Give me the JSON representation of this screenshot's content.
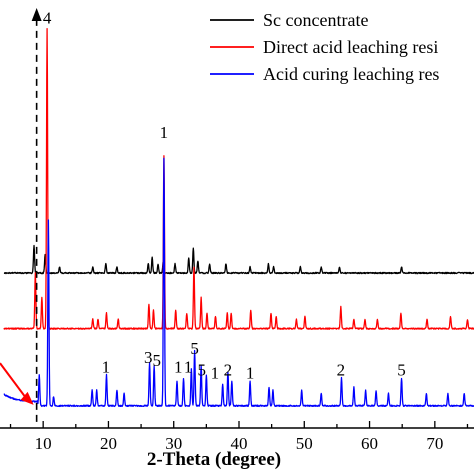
{
  "chart_data": {
    "type": "line",
    "title": "",
    "xlabel": "2-Theta (degree)",
    "ylabel": "",
    "xlim": [
      4,
      76
    ],
    "xticks": [
      10,
      20,
      30,
      40,
      50,
      60,
      70
    ],
    "xtick_labels": [
      "10",
      "20",
      "30",
      "40",
      "50",
      "60",
      "70"
    ],
    "legend_position": "top-right",
    "grid": false,
    "series": [
      {
        "name": "Sc concentrate",
        "color": "#000000",
        "baseline": 0.5,
        "peaks": [
          [
            8.6,
            0.09
          ],
          [
            10.3,
            0.06
          ],
          [
            12.5,
            0.02
          ],
          [
            17.6,
            0.02
          ],
          [
            19.6,
            0.03
          ],
          [
            21.3,
            0.02
          ],
          [
            26.1,
            0.03
          ],
          [
            26.7,
            0.05
          ],
          [
            27.6,
            0.03
          ],
          [
            28.4,
            0.04
          ],
          [
            30.2,
            0.03
          ],
          [
            32.3,
            0.05
          ],
          [
            33.0,
            0.08
          ],
          [
            33.7,
            0.04
          ],
          [
            35.5,
            0.03
          ],
          [
            38.0,
            0.03
          ],
          [
            41.7,
            0.02
          ],
          [
            44.5,
            0.03
          ],
          [
            45.3,
            0.02
          ],
          [
            49.4,
            0.02
          ],
          [
            52.6,
            0.02
          ],
          [
            55.4,
            0.02
          ],
          [
            64.9,
            0.02
          ]
        ]
      },
      {
        "name": "Direct acid leaching resi",
        "color": "#ff0000",
        "baseline": 0.32,
        "peaks": [
          [
            8.8,
            0.18
          ],
          [
            9.8,
            0.1
          ],
          [
            10.6,
            0.97
          ],
          [
            17.6,
            0.03
          ],
          [
            18.4,
            0.03
          ],
          [
            19.7,
            0.05
          ],
          [
            21.5,
            0.03
          ],
          [
            26.2,
            0.08
          ],
          [
            26.9,
            0.06
          ],
          [
            28.5,
            0.56
          ],
          [
            30.3,
            0.06
          ],
          [
            32.0,
            0.05
          ],
          [
            33.1,
            0.2
          ],
          [
            34.2,
            0.1
          ],
          [
            35.1,
            0.05
          ],
          [
            36.4,
            0.04
          ],
          [
            38.2,
            0.05
          ],
          [
            38.8,
            0.05
          ],
          [
            41.8,
            0.06
          ],
          [
            44.9,
            0.05
          ],
          [
            45.7,
            0.04
          ],
          [
            48.8,
            0.03
          ],
          [
            50.1,
            0.04
          ],
          [
            55.6,
            0.07
          ],
          [
            57.6,
            0.03
          ],
          [
            59.3,
            0.03
          ],
          [
            61.2,
            0.03
          ],
          [
            64.8,
            0.05
          ],
          [
            68.8,
            0.03
          ],
          [
            72.4,
            0.04
          ],
          [
            75.0,
            0.03
          ]
        ]
      },
      {
        "name": "Acid curing leaching res",
        "color": "#0000ff",
        "baseline": 0.07,
        "peaks": [
          [
            9.4,
            0.1
          ],
          [
            10.8,
            0.6
          ],
          [
            11.6,
            0.03
          ],
          [
            17.5,
            0.05
          ],
          [
            18.2,
            0.05
          ],
          [
            19.7,
            0.1
          ],
          [
            21.3,
            0.05
          ],
          [
            22.4,
            0.04
          ],
          [
            26.3,
            0.14
          ],
          [
            27.0,
            0.13
          ],
          [
            28.5,
            0.8
          ],
          [
            30.5,
            0.08
          ],
          [
            31.5,
            0.09
          ],
          [
            32.7,
            0.12
          ],
          [
            33.2,
            0.18
          ],
          [
            34.2,
            0.13
          ],
          [
            35.0,
            0.1
          ],
          [
            37.5,
            0.07
          ],
          [
            38.3,
            0.11
          ],
          [
            38.9,
            0.08
          ],
          [
            41.7,
            0.08
          ],
          [
            44.6,
            0.06
          ],
          [
            45.2,
            0.05
          ],
          [
            49.6,
            0.05
          ],
          [
            52.6,
            0.04
          ],
          [
            55.7,
            0.09
          ],
          [
            57.6,
            0.06
          ],
          [
            59.4,
            0.05
          ],
          [
            61.0,
            0.05
          ],
          [
            62.9,
            0.04
          ],
          [
            64.9,
            0.09
          ],
          [
            68.7,
            0.04
          ],
          [
            72.0,
            0.04
          ],
          [
            74.5,
            0.04
          ]
        ]
      }
    ],
    "annotations": [
      {
        "text": "4",
        "x": 10.6,
        "y": 1.31
      },
      {
        "text": "1",
        "x": 28.5,
        "y": 0.94
      },
      {
        "text": "1",
        "x": 19.6,
        "y": 0.18
      },
      {
        "text": "3",
        "x": 26.1,
        "y": 0.21
      },
      {
        "text": "5",
        "x": 27.4,
        "y": 0.2
      },
      {
        "text": "5",
        "x": 33.2,
        "y": 0.24
      },
      {
        "text": "1",
        "x": 30.7,
        "y": 0.18
      },
      {
        "text": "1",
        "x": 32.2,
        "y": 0.18
      },
      {
        "text": "5",
        "x": 34.3,
        "y": 0.17
      },
      {
        "text": "1",
        "x": 36.3,
        "y": 0.16
      },
      {
        "text": "2",
        "x": 38.3,
        "y": 0.17
      },
      {
        "text": "1",
        "x": 41.7,
        "y": 0.16
      },
      {
        "text": "2",
        "x": 55.6,
        "y": 0.17
      },
      {
        "text": "5",
        "x": 64.9,
        "y": 0.17
      }
    ],
    "reference_line": {
      "x": 9.0,
      "style": "dashed-arrow"
    },
    "shift_arrow": {
      "color": "#ff0000",
      "to_x": 9.0
    }
  }
}
